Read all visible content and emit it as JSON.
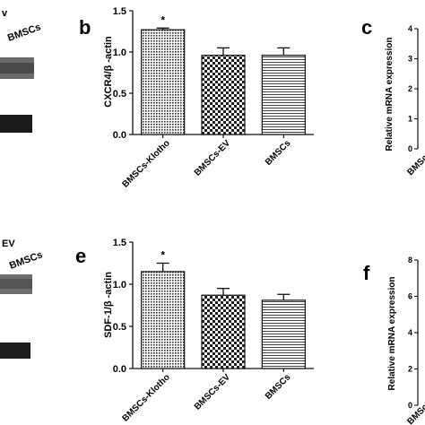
{
  "panels": {
    "b": "b",
    "c": "c",
    "e": "e",
    "f": "f"
  },
  "gels": [
    {
      "label_fragment": "v",
      "lane_label": "BMSCs"
    },
    {
      "label_fragment": "EV",
      "lane_label": "BMSCs"
    }
  ],
  "side_charts": [
    {
      "ylabel": "Relative mRNA expression",
      "ticks": [
        "0",
        "1",
        "2",
        "3",
        "4"
      ],
      "cat_fragment": "BMSc"
    },
    {
      "ylabel": "Relative mRNA expression",
      "ticks": [
        "0",
        "2",
        "4",
        "6",
        "8"
      ],
      "cat_fragment": "BMSc"
    }
  ],
  "chart_data": [
    {
      "type": "bar",
      "categories": [
        "BMSCs-Klotho",
        "BMSCs-EV",
        "BMSCs"
      ],
      "values": [
        1.27,
        0.96,
        0.96
      ],
      "errors": [
        0.02,
        0.09,
        0.09
      ],
      "significance": [
        "*",
        "",
        ""
      ],
      "ylabel": "CXCR4/β -actin",
      "ylim": [
        0.0,
        1.5
      ],
      "yticks": [
        "0.0",
        "0.5",
        "1.0",
        "1.5"
      ],
      "grid": false,
      "patterns": [
        "dots",
        "checker",
        "hlines"
      ]
    },
    {
      "type": "bar",
      "categories": [
        "BMSCs-Klotho",
        "BMSCs-EV",
        "BMSCs"
      ],
      "values": [
        1.15,
        0.87,
        0.81
      ],
      "errors": [
        0.1,
        0.08,
        0.07
      ],
      "significance": [
        "*",
        "",
        ""
      ],
      "ylabel": "SDF-1/β -actin",
      "ylim": [
        0.0,
        1.5
      ],
      "yticks": [
        "0.0",
        "0.5",
        "1.0",
        "1.5"
      ],
      "grid": false,
      "patterns": [
        "dots",
        "checker",
        "hlines"
      ]
    }
  ]
}
